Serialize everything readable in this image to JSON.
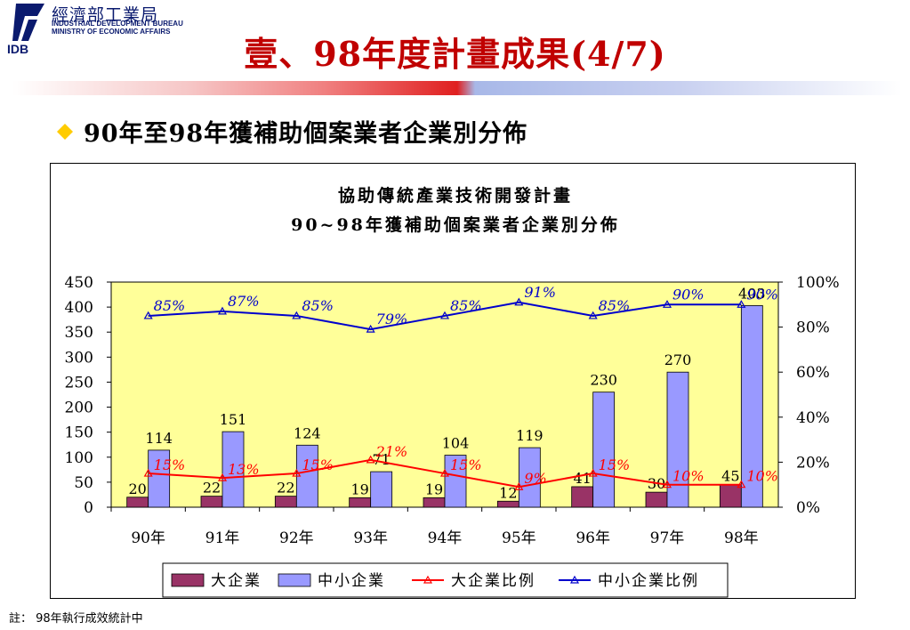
{
  "header": {
    "org_zh": "經濟部工業局",
    "org_en_line1": "INDUSTRIAL DEVELOPMENT BUREAU",
    "org_en_line2": "MINISTRY OF ECONOMIC AFFAIRS",
    "logo_text": "IDB",
    "title": "壹、98年度計畫成果(4/7)"
  },
  "subtitle": "90年至98年獲補助個案業者企業別分佈",
  "note": "註：  98年執行成效統計中",
  "colors": {
    "large_bar": "#993366",
    "sme_bar": "#9999ff",
    "large_line": "#ff0000",
    "sme_line": "#0000cc",
    "plot_bg": "#ffff99",
    "title_red": "#c00000"
  },
  "chart_data": {
    "type": "bar",
    "title": "協助傳統產業技術開發計畫",
    "subtitle": "90~98年獲補助個案業者企業別分佈",
    "categories": [
      "90年",
      "91年",
      "92年",
      "93年",
      "94年",
      "95年",
      "96年",
      "97年",
      "98年"
    ],
    "series": [
      {
        "name": "大企業",
        "kind": "bar",
        "axis": "left",
        "values": [
          20,
          22,
          22,
          19,
          19,
          12,
          41,
          30,
          45
        ]
      },
      {
        "name": "中小企業",
        "kind": "bar",
        "axis": "left",
        "values": [
          114,
          151,
          124,
          71,
          104,
          119,
          230,
          270,
          403
        ]
      },
      {
        "name": "大企業比例",
        "kind": "line",
        "axis": "right",
        "values": [
          15,
          13,
          15,
          21,
          15,
          9,
          15,
          10,
          10
        ],
        "labels": [
          "15%",
          "13%",
          "15%",
          "21%",
          "15%",
          "9%",
          "15%",
          "10%",
          "10%"
        ]
      },
      {
        "name": "中小企業比例",
        "kind": "line",
        "axis": "right",
        "values": [
          85,
          87,
          85,
          79,
          85,
          91,
          85,
          90,
          90
        ],
        "labels": [
          "85%",
          "87%",
          "85%",
          "79%",
          "85%",
          "91%",
          "85%",
          "90%",
          "90%"
        ]
      }
    ],
    "y_left": {
      "min": 0,
      "max": 450,
      "ticks": [
        "0",
        "50",
        "100",
        "150",
        "200",
        "250",
        "300",
        "350",
        "400",
        "450"
      ]
    },
    "y_right": {
      "min": 0,
      "max": 100,
      "ticks": [
        "0%",
        "20%",
        "40%",
        "60%",
        "80%",
        "100%"
      ]
    },
    "grid": false,
    "legend": "bottom"
  }
}
